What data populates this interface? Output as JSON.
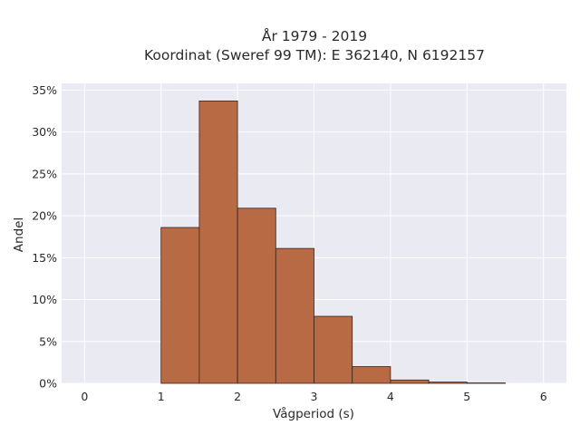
{
  "chart_data": {
    "type": "bar",
    "title_line1": "År 1979 - 2019",
    "title_line2": "Koordinat (Sweref 99 TM): E 362140, N 6192157",
    "xlabel": "Vågperiod (s)",
    "ylabel": "Andel",
    "bin_width": 0.5,
    "x_ticks": [
      0,
      1,
      2,
      3,
      4,
      5,
      6
    ],
    "y_ticks": [
      0,
      5,
      10,
      15,
      20,
      25,
      30,
      35
    ],
    "y_tick_labels": [
      "0%",
      "5%",
      "10%",
      "15%",
      "20%",
      "25%",
      "30%",
      "35%"
    ],
    "xlim": [
      -0.3,
      6.3
    ],
    "ylim": [
      0,
      35.8
    ],
    "bins": [
      {
        "x": 1.0,
        "value": 18.6
      },
      {
        "x": 1.5,
        "value": 33.7
      },
      {
        "x": 2.0,
        "value": 20.9
      },
      {
        "x": 2.5,
        "value": 16.1
      },
      {
        "x": 3.0,
        "value": 8.0
      },
      {
        "x": 3.5,
        "value": 2.0
      },
      {
        "x": 4.0,
        "value": 0.4
      },
      {
        "x": 4.5,
        "value": 0.15
      },
      {
        "x": 5.0,
        "value": 0.05
      }
    ],
    "bar_color": "#b86a45",
    "grid": true,
    "background_color": "#eaeaf2"
  }
}
